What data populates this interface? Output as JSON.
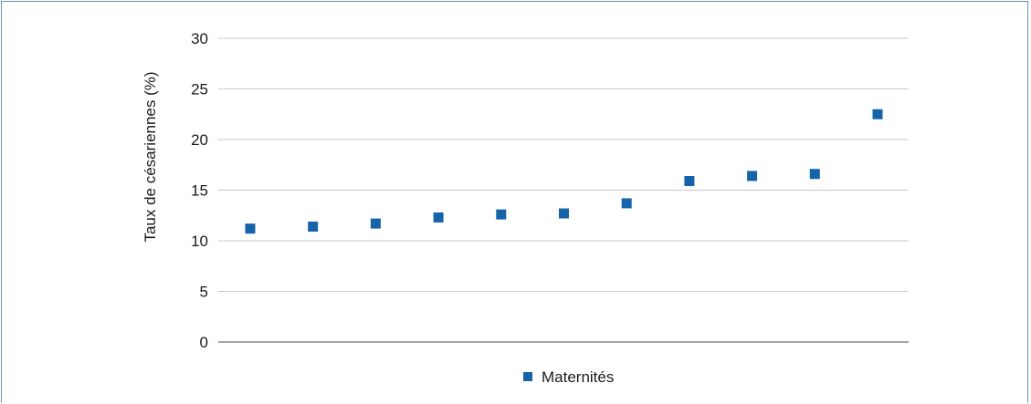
{
  "chart_data": {
    "type": "scatter",
    "ylabel": "Taux de césariennes (%)",
    "xlabel": "",
    "ylim": [
      0,
      30
    ],
    "yticks": [
      0,
      5,
      10,
      15,
      20,
      25,
      30
    ],
    "grid": true,
    "legend_position": "bottom",
    "marker": "square",
    "series": [
      {
        "name": "Maternités",
        "color": "#1563a8",
        "x": [
          1,
          2,
          3,
          4,
          5,
          6,
          7,
          8,
          9,
          10,
          11
        ],
        "values": [
          11.2,
          11.4,
          11.7,
          12.3,
          12.6,
          12.7,
          13.7,
          15.9,
          16.4,
          16.6,
          22.5
        ]
      }
    ]
  }
}
